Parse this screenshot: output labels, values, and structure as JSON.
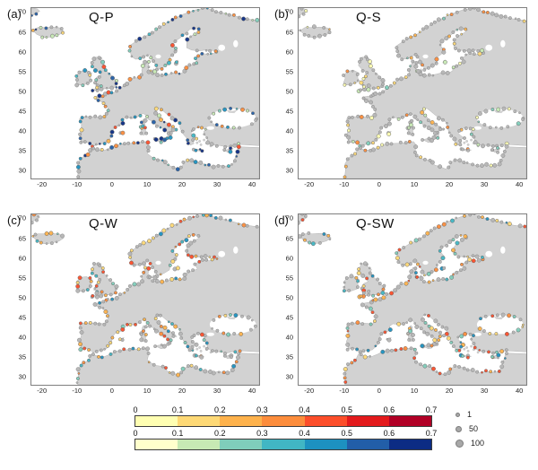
{
  "figure": {
    "panels": [
      {
        "tag": "(a)",
        "title": "Q-P",
        "dots": {
          "gray": 0.38,
          "south_cool": true,
          "pools": [
            {
              "palette": "cool",
              "idx": [
                2,
                3,
                4,
                5,
                6
              ],
              "w": 0.55
            },
            {
              "palette": "warm",
              "idx": [
                1,
                2,
                3,
                4
              ],
              "w": 0.3
            },
            {
              "palette": "cool",
              "idx": [
                1
              ],
              "w": 0.15
            }
          ]
        }
      },
      {
        "tag": "(b)",
        "title": "Q-S",
        "dots": {
          "gray": 0.7,
          "south_cool": false,
          "pools": [
            {
              "palette": "warm",
              "idx": [
                0,
                1,
                2,
                3
              ],
              "w": 0.72
            },
            {
              "palette": "cool",
              "idx": [
                1,
                2
              ],
              "w": 0.28
            }
          ]
        }
      },
      {
        "tag": "(c)",
        "title": "Q-W",
        "dots": {
          "gray": 0.5,
          "south_cool": false,
          "pools": [
            {
              "palette": "warm",
              "idx": [
                1,
                2,
                3,
                4
              ],
              "w": 0.68
            },
            {
              "palette": "cool",
              "idx": [
                2,
                3,
                4
              ],
              "w": 0.32
            }
          ]
        }
      },
      {
        "tag": "(d)",
        "title": "Q-SW",
        "dots": {
          "gray": 0.5,
          "south_cool": false,
          "pools": [
            {
              "palette": "warm",
              "idx": [
                1,
                2,
                3,
                4
              ],
              "w": 0.62
            },
            {
              "palette": "cool",
              "idx": [
                2,
                3,
                4
              ],
              "w": 0.38
            }
          ]
        }
      }
    ],
    "axes": {
      "xticks": [
        -20,
        -10,
        0,
        10,
        20,
        30,
        40
      ],
      "yticks": [
        30,
        35,
        40,
        45,
        50,
        55,
        60,
        65,
        70
      ],
      "lon_range": [
        -23,
        42
      ],
      "lat_range": [
        28,
        71
      ]
    },
    "colorbars": [
      {
        "name": "warm-scale",
        "ticks": [
          "0",
          "0.1",
          "0.2",
          "0.3",
          "0.4",
          "0.5",
          "0.6",
          "0.7"
        ],
        "colors": [
          "#ffffb2",
          "#fed976",
          "#feb24c",
          "#fd8d3c",
          "#fc4e2a",
          "#e31a1c",
          "#b10026"
        ]
      },
      {
        "name": "cool-scale",
        "ticks": [
          "0",
          "0.1",
          "0.2",
          "0.3",
          "0.4",
          "0.5",
          "0.6",
          "0.7"
        ],
        "colors": [
          "#ffffcc",
          "#c7e9b4",
          "#7fcdbb",
          "#41b6c4",
          "#1d91c0",
          "#225ea8",
          "#0c2c84"
        ]
      }
    ],
    "size_legend": {
      "labels": [
        "1",
        "50",
        "100"
      ]
    },
    "map": {
      "land_color": "#d2d2d2",
      "land_edge": "#b4b4b4",
      "sea_color": "#ffffff",
      "dot_gray": "#b5b5b5",
      "dot_stroke": "#8a8a8a",
      "colored_dot_stroke": "#666666"
    }
  }
}
